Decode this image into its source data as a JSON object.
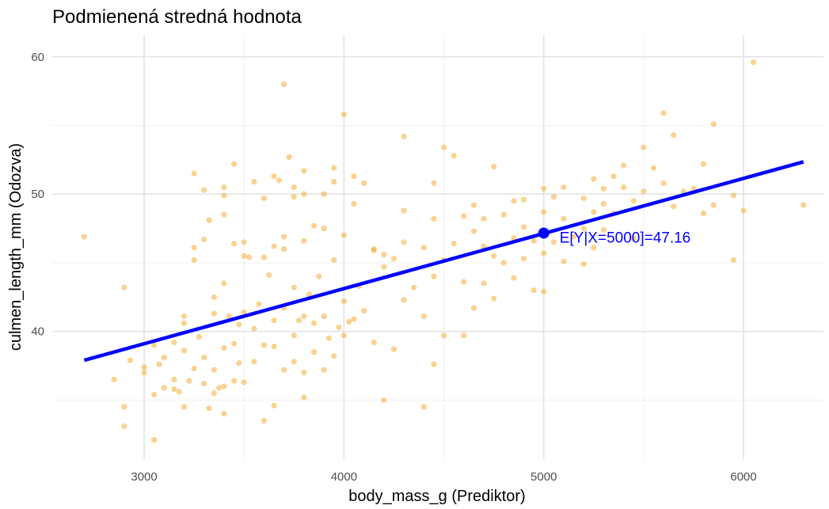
{
  "chart_data": {
    "type": "scatter",
    "title": "Podmienená stredná hodnota",
    "xlabel": "body_mass_g (Prediktor)",
    "ylabel": "culmen_length_mm (Odozva)",
    "xlim": [
      2540,
      6400
    ],
    "ylim": [
      30.7,
      61.6
    ],
    "x_ticks": [
      3000,
      4000,
      5000,
      6000
    ],
    "y_ticks": [
      40,
      50,
      60
    ],
    "grid": true,
    "point_color": "#f5a623",
    "line_color": "#0000ff",
    "points": [
      [
        2700,
        46.9
      ],
      [
        2850,
        36.5
      ],
      [
        2900,
        43.2
      ],
      [
        2900,
        34.5
      ],
      [
        2900,
        33.1
      ],
      [
        2930,
        37.9
      ],
      [
        3000,
        37.4
      ],
      [
        3000,
        37.0
      ],
      [
        3050,
        32.1
      ],
      [
        3050,
        35.4
      ],
      [
        3050,
        39.0
      ],
      [
        3075,
        37.6
      ],
      [
        3100,
        35.9
      ],
      [
        3100,
        38.1
      ],
      [
        3150,
        35.8
      ],
      [
        3150,
        36.5
      ],
      [
        3150,
        39.2
      ],
      [
        3175,
        35.6
      ],
      [
        3200,
        34.5
      ],
      [
        3200,
        38.6
      ],
      [
        3200,
        40.6
      ],
      [
        3200,
        41.1
      ],
      [
        3225,
        36.4
      ],
      [
        3250,
        45.2
      ],
      [
        3250,
        46.1
      ],
      [
        3250,
        51.5
      ],
      [
        3250,
        37.3
      ],
      [
        3275,
        39.6
      ],
      [
        3300,
        50.3
      ],
      [
        3300,
        46.7
      ],
      [
        3300,
        38.1
      ],
      [
        3300,
        36.2
      ],
      [
        3325,
        34.4
      ],
      [
        3325,
        48.1
      ],
      [
        3350,
        42.5
      ],
      [
        3350,
        35.5
      ],
      [
        3350,
        37.2
      ],
      [
        3350,
        41.3
      ],
      [
        3375,
        35.9
      ],
      [
        3400,
        50.5
      ],
      [
        3400,
        49.9
      ],
      [
        3400,
        48.5
      ],
      [
        3400,
        43.5
      ],
      [
        3400,
        38.8
      ],
      [
        3400,
        36.0
      ],
      [
        3400,
        34.0
      ],
      [
        3425,
        41.1
      ],
      [
        3450,
        52.2
      ],
      [
        3450,
        46.4
      ],
      [
        3450,
        36.4
      ],
      [
        3450,
        39.1
      ],
      [
        3475,
        37.7
      ],
      [
        3475,
        40.5
      ],
      [
        3500,
        45.5
      ],
      [
        3500,
        46.5
      ],
      [
        3500,
        41.4
      ],
      [
        3500,
        36.3
      ],
      [
        3525,
        45.4
      ],
      [
        3550,
        50.9
      ],
      [
        3550,
        40.2
      ],
      [
        3550,
        37.8
      ],
      [
        3575,
        42.0
      ],
      [
        3600,
        49.7
      ],
      [
        3600,
        45.4
      ],
      [
        3600,
        39.0
      ],
      [
        3600,
        33.5
      ],
      [
        3625,
        44.1
      ],
      [
        3650,
        51.3
      ],
      [
        3650,
        46.2
      ],
      [
        3650,
        40.8
      ],
      [
        3650,
        38.9
      ],
      [
        3650,
        34.6
      ],
      [
        3675,
        51.0
      ],
      [
        3700,
        58.0
      ],
      [
        3700,
        46.9
      ],
      [
        3700,
        46.0
      ],
      [
        3700,
        41.7
      ],
      [
        3700,
        37.2
      ],
      [
        3725,
        52.7
      ],
      [
        3750,
        50.5
      ],
      [
        3750,
        49.8
      ],
      [
        3750,
        43.2
      ],
      [
        3750,
        39.7
      ],
      [
        3750,
        37.8
      ],
      [
        3775,
        40.8
      ],
      [
        3800,
        51.7
      ],
      [
        3800,
        50.0
      ],
      [
        3800,
        46.6
      ],
      [
        3800,
        41.1
      ],
      [
        3800,
        37.0
      ],
      [
        3800,
        35.2
      ],
      [
        3825,
        42.7
      ],
      [
        3850,
        47.7
      ],
      [
        3850,
        40.6
      ],
      [
        3850,
        38.5
      ],
      [
        3875,
        44.0
      ],
      [
        3900,
        50.0
      ],
      [
        3900,
        47.5
      ],
      [
        3900,
        41.1
      ],
      [
        3900,
        37.2
      ],
      [
        3925,
        39.5
      ],
      [
        3950,
        51.9
      ],
      [
        3950,
        50.9
      ],
      [
        3950,
        45.2
      ],
      [
        3950,
        38.2
      ],
      [
        3975,
        40.3
      ],
      [
        4000,
        55.8
      ],
      [
        4000,
        47.0
      ],
      [
        4000,
        42.2
      ],
      [
        4000,
        39.7
      ],
      [
        4025,
        40.7
      ],
      [
        4050,
        51.3
      ],
      [
        4050,
        49.3
      ],
      [
        4050,
        40.9
      ],
      [
        4075,
        43.3
      ],
      [
        4100,
        50.8
      ],
      [
        4100,
        41.5
      ],
      [
        4150,
        45.9
      ],
      [
        4150,
        46.0
      ],
      [
        4150,
        39.2
      ],
      [
        4200,
        45.6
      ],
      [
        4200,
        44.7
      ],
      [
        4200,
        35.0
      ],
      [
        4250,
        45.3
      ],
      [
        4250,
        38.7
      ],
      [
        4300,
        54.2
      ],
      [
        4300,
        48.8
      ],
      [
        4300,
        46.5
      ],
      [
        4300,
        42.3
      ],
      [
        4350,
        43.2
      ],
      [
        4400,
        46.1
      ],
      [
        4400,
        41.1
      ],
      [
        4400,
        34.5
      ],
      [
        4450,
        50.8
      ],
      [
        4450,
        48.2
      ],
      [
        4450,
        44.0
      ],
      [
        4450,
        37.6
      ],
      [
        4500,
        53.4
      ],
      [
        4500,
        45.2
      ],
      [
        4500,
        39.7
      ],
      [
        4550,
        52.8
      ],
      [
        4550,
        46.4
      ],
      [
        4600,
        48.4
      ],
      [
        4600,
        43.6
      ],
      [
        4600,
        39.7
      ],
      [
        4650,
        49.2
      ],
      [
        4650,
        47.3
      ],
      [
        4650,
        41.7
      ],
      [
        4700,
        48.2
      ],
      [
        4700,
        46.2
      ],
      [
        4700,
        43.5
      ],
      [
        4750,
        52.0
      ],
      [
        4750,
        45.5
      ],
      [
        4750,
        42.4
      ],
      [
        4800,
        48.5
      ],
      [
        4800,
        45.0
      ],
      [
        4850,
        49.5
      ],
      [
        4850,
        46.8
      ],
      [
        4850,
        43.9
      ],
      [
        4900,
        49.6
      ],
      [
        4900,
        47.6
      ],
      [
        4900,
        45.3
      ],
      [
        4950,
        46.6
      ],
      [
        4950,
        43.0
      ],
      [
        5000,
        50.4
      ],
      [
        5000,
        48.7
      ],
      [
        5000,
        45.7
      ],
      [
        5000,
        42.9
      ],
      [
        5050,
        49.8
      ],
      [
        5050,
        46.5
      ],
      [
        5100,
        50.5
      ],
      [
        5100,
        48.2
      ],
      [
        5100,
        45.1
      ],
      [
        5150,
        46.9
      ],
      [
        5200,
        49.7
      ],
      [
        5200,
        47.5
      ],
      [
        5200,
        44.9
      ],
      [
        5250,
        51.1
      ],
      [
        5250,
        48.7
      ],
      [
        5250,
        46.1
      ],
      [
        5300,
        50.4
      ],
      [
        5300,
        49.3
      ],
      [
        5300,
        47.4
      ],
      [
        5350,
        51.3
      ],
      [
        5350,
        48.6
      ],
      [
        5400,
        52.1
      ],
      [
        5400,
        50.5
      ],
      [
        5450,
        49.5
      ],
      [
        5450,
        46.8
      ],
      [
        5500,
        53.4
      ],
      [
        5500,
        50.2
      ],
      [
        5550,
        51.9
      ],
      [
        5600,
        55.9
      ],
      [
        5600,
        50.8
      ],
      [
        5650,
        54.3
      ],
      [
        5650,
        49.1
      ],
      [
        5700,
        50.2
      ],
      [
        5750,
        50.4
      ],
      [
        5800,
        52.2
      ],
      [
        5800,
        48.6
      ],
      [
        5850,
        55.1
      ],
      [
        5850,
        49.2
      ],
      [
        5950,
        49.9
      ],
      [
        5950,
        45.2
      ],
      [
        6000,
        48.8
      ],
      [
        6050,
        59.6
      ],
      [
        6300,
        49.2
      ]
    ],
    "regression": {
      "x": [
        2700,
        6300
      ],
      "y": [
        37.9,
        52.35
      ]
    },
    "highlight": {
      "x": 5000,
      "y": 47.16,
      "label": "E[Y|X=5000]=47.16"
    }
  }
}
